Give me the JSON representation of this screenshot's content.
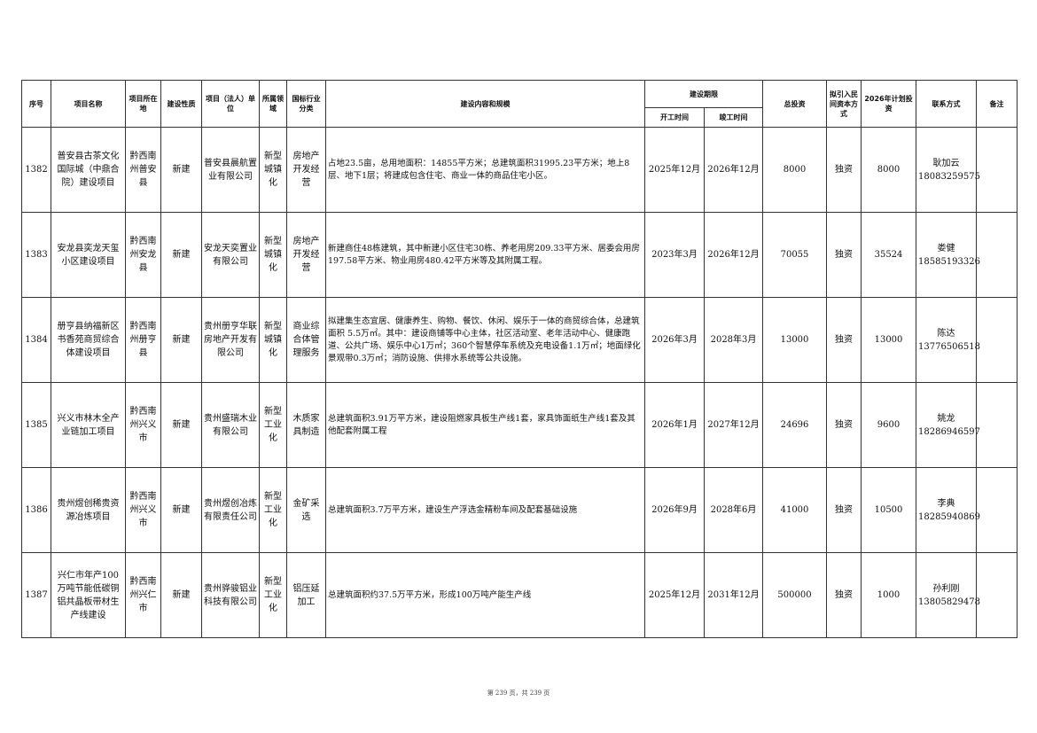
{
  "headers": {
    "seq": "序号",
    "name": "项目名称",
    "location": "项目所在地",
    "nature": "建设性质",
    "unit": "项目（法人）单位",
    "field": "所属领域",
    "industry": "国标行业分类",
    "content": "建设内容和规模",
    "period": "建设期限",
    "start": "开工时间",
    "end": "竣工时间",
    "total": "总投资",
    "private": "拟引入民间资本方式",
    "plan": "2026年计划投资",
    "contact": "联系方式",
    "remark": "备注"
  },
  "rows": [
    {
      "seq": "1382",
      "name": "普安县古茶文化国际城（中鼎合院）建设项目",
      "location": "黔西南州普安县",
      "nature": "新建",
      "unit": "普安县晨航置业有限公司",
      "field": "新型城镇化",
      "industry": "房地产开发经营",
      "content": "占地23.5亩，总用地面积：14855平方米；总建筑面积31995.23平方米；地上8层、地下1层；将建成包含住宅、商业一体的商品住宅小区。",
      "start": "2025年12月",
      "end": "2026年12月",
      "total": "8000",
      "private": "独资",
      "plan": "8000",
      "contact_name": "耿加云",
      "contact_phone": "18083259575",
      "remark": ""
    },
    {
      "seq": "1383",
      "name": "安龙县奕龙天玺小区建设项目",
      "location": "黔西南州安龙县",
      "nature": "新建",
      "unit": "安龙天奕置业有限公司",
      "field": "新型城镇化",
      "industry": "房地产开发经营",
      "content": "新建商住48栋建筑，其中新建小区住宅30栋、养老用房209.33平方米、居委会用房197.58平方米、物业用房480.42平方米等及其附属工程。",
      "start": "2023年3月",
      "end": "2026年12月",
      "total": "70055",
      "private": "独资",
      "plan": "35524",
      "contact_name": "娄健",
      "contact_phone": "18585193326",
      "remark": ""
    },
    {
      "seq": "1384",
      "name": "册亨县纳福新区书香苑商贸综合体建设项目",
      "location": "黔西南州册亨县",
      "nature": "新建",
      "unit": "贵州册亨华联房地产开发有限公司",
      "field": "新型城镇化",
      "industry": "商业综合体管理服务",
      "content": "拟建集生态宜居、健康养生、购物、餐饮、休闲、娱乐于一体的商贸综合体，总建筑面积 5.5万㎡。其中：建设商铺等中心主体，社区活动室、老年活动中心、健康跑道、公共广场、娱乐中心1万㎡；360个智慧停车系统及充电设备1.1万㎡；地面绿化景观带0.3万㎡；消防设施、供排水系统等公共设施。",
      "start": "2026年3月",
      "end": "2028年3月",
      "total": "13000",
      "private": "独资",
      "plan": "13000",
      "contact_name": "陈达",
      "contact_phone": "13776506518",
      "remark": ""
    },
    {
      "seq": "1385",
      "name": "兴义市林木全产业链加工项目",
      "location": "黔西南州兴义市",
      "nature": "新建",
      "unit": "贵州盛瑞木业有限公司",
      "field": "新型工业化",
      "industry": "木质家具制造",
      "content": "总建筑面积3.91万平方米，建设阻燃家具板生产线1套，家具饰面纸生产线1套及其他配套附属工程",
      "start": "2026年1月",
      "end": "2027年12月",
      "total": "24696",
      "private": "独资",
      "plan": "9600",
      "contact_name": "姚龙",
      "contact_phone": "18286946597",
      "remark": ""
    },
    {
      "seq": "1386",
      "name": "贵州煜创稀贵资源冶炼项目",
      "location": "黔西南州兴义市",
      "nature": "新建",
      "unit": "贵州煜创冶炼有限责任公司",
      "field": "新型工业化",
      "industry": "金矿采选",
      "content": "总建筑面积3.7万平方米，建设生产浮选金精粉车间及配套基础设施",
      "start": "2026年9月",
      "end": "2028年6月",
      "total": "41000",
      "private": "独资",
      "plan": "10500",
      "contact_name": "李典",
      "contact_phone": "18285940869",
      "remark": ""
    },
    {
      "seq": "1387",
      "name": "兴仁市年产100万吨节能低碳铜铝共晶板带材生产线建设",
      "location": "黔西南州兴仁市",
      "nature": "新建",
      "unit": "贵州骅骏铝业科技有限公司",
      "field": "新型工业化",
      "industry": "铝压延加工",
      "content": "总建筑面积约37.5万平方米，形成100万吨产能生产线",
      "start": "2025年12月",
      "end": "2031年12月",
      "total": "500000",
      "private": "独资",
      "plan": "1000",
      "contact_name": "孙利刚",
      "contact_phone": "13805829478",
      "remark": ""
    }
  ],
  "footer": "第 239 页，共 239 页"
}
